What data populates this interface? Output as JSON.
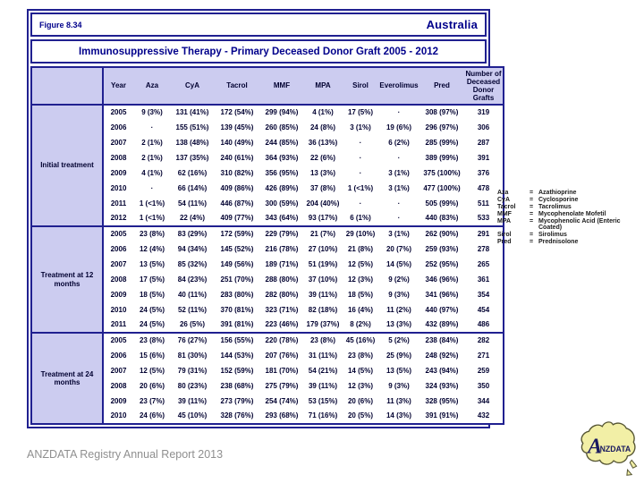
{
  "header": {
    "figure_label": "Figure 8.34",
    "region": "Australia"
  },
  "title": "Immunosuppressive Therapy - Primary Deceased Donor Graft 2005 - 2012",
  "table": {
    "columns": [
      "Year",
      "Aza",
      "CyA",
      "Tacrol",
      "MMF",
      "MPA",
      "Sirol",
      "Everolimus",
      "Pred",
      "Number of Deceased Donor Grafts"
    ],
    "sections": [
      {
        "label": "Initial treatment",
        "rows": [
          [
            "2005",
            "9 (3%)",
            "131 (41%)",
            "172 (54%)",
            "299 (94%)",
            "4 (1%)",
            "17 (5%)",
            "·",
            "308 (97%)",
            "319"
          ],
          [
            "2006",
            "·",
            "155 (51%)",
            "139 (45%)",
            "260 (85%)",
            "24 (8%)",
            "3 (1%)",
            "19 (6%)",
            "296 (97%)",
            "306"
          ],
          [
            "2007",
            "2 (1%)",
            "138 (48%)",
            "140 (49%)",
            "244 (85%)",
            "36 (13%)",
            "·",
            "6 (2%)",
            "285 (99%)",
            "287"
          ],
          [
            "2008",
            "2 (1%)",
            "137 (35%)",
            "240 (61%)",
            "364 (93%)",
            "22 (6%)",
            "·",
            "·",
            "389 (99%)",
            "391"
          ],
          [
            "2009",
            "4 (1%)",
            "62 (16%)",
            "310 (82%)",
            "356 (95%)",
            "13 (3%)",
            "·",
            "3 (1%)",
            "375 (100%)",
            "376"
          ],
          [
            "2010",
            "·",
            "66 (14%)",
            "409 (86%)",
            "426 (89%)",
            "37 (8%)",
            "1 (<1%)",
            "3 (1%)",
            "477 (100%)",
            "478"
          ],
          [
            "2011",
            "1 (<1%)",
            "54 (11%)",
            "446 (87%)",
            "300 (59%)",
            "204 (40%)",
            "·",
            "·",
            "505 (99%)",
            "511"
          ],
          [
            "2012",
            "1 (<1%)",
            "22 (4%)",
            "409 (77%)",
            "343 (64%)",
            "93 (17%)",
            "6 (1%)",
            "·",
            "440 (83%)",
            "533"
          ]
        ]
      },
      {
        "label": "Treatment at 12 months",
        "rows": [
          [
            "2005",
            "23 (8%)",
            "83 (29%)",
            "172 (59%)",
            "229 (79%)",
            "21 (7%)",
            "29 (10%)",
            "3 (1%)",
            "262 (90%)",
            "291"
          ],
          [
            "2006",
            "12 (4%)",
            "94 (34%)",
            "145 (52%)",
            "216 (78%)",
            "27 (10%)",
            "21 (8%)",
            "20 (7%)",
            "259 (93%)",
            "278"
          ],
          [
            "2007",
            "13 (5%)",
            "85 (32%)",
            "149 (56%)",
            "189 (71%)",
            "51 (19%)",
            "12 (5%)",
            "14 (5%)",
            "252 (95%)",
            "265"
          ],
          [
            "2008",
            "17 (5%)",
            "84 (23%)",
            "251 (70%)",
            "288 (80%)",
            "37 (10%)",
            "12 (3%)",
            "9 (2%)",
            "346 (96%)",
            "361"
          ],
          [
            "2009",
            "18 (5%)",
            "40 (11%)",
            "283 (80%)",
            "282 (80%)",
            "39 (11%)",
            "18 (5%)",
            "9 (3%)",
            "341 (96%)",
            "354"
          ],
          [
            "2010",
            "24 (5%)",
            "52 (11%)",
            "370 (81%)",
            "323 (71%)",
            "82 (18%)",
            "16 (4%)",
            "11 (2%)",
            "440 (97%)",
            "454"
          ],
          [
            "2011",
            "24 (5%)",
            "26 (5%)",
            "391 (81%)",
            "223 (46%)",
            "179 (37%)",
            "8 (2%)",
            "13 (3%)",
            "432 (89%)",
            "486"
          ]
        ]
      },
      {
        "label": "Treatment at 24 months",
        "rows": [
          [
            "2005",
            "23 (8%)",
            "76 (27%)",
            "156 (55%)",
            "220 (78%)",
            "23 (8%)",
            "45 (16%)",
            "5 (2%)",
            "238 (84%)",
            "282"
          ],
          [
            "2006",
            "15 (6%)",
            "81 (30%)",
            "144 (53%)",
            "207 (76%)",
            "31 (11%)",
            "23 (8%)",
            "25 (9%)",
            "248 (92%)",
            "271"
          ],
          [
            "2007",
            "12 (5%)",
            "79 (31%)",
            "152 (59%)",
            "181 (70%)",
            "54 (21%)",
            "14 (5%)",
            "13 (5%)",
            "243 (94%)",
            "259"
          ],
          [
            "2008",
            "20 (6%)",
            "80 (23%)",
            "238 (68%)",
            "275 (79%)",
            "39 (11%)",
            "12 (3%)",
            "9 (3%)",
            "324 (93%)",
            "350"
          ],
          [
            "2009",
            "23 (7%)",
            "39 (11%)",
            "273 (79%)",
            "254 (74%)",
            "53 (15%)",
            "20 (6%)",
            "11 (3%)",
            "328 (95%)",
            "344"
          ],
          [
            "2010",
            "24 (6%)",
            "45 (10%)",
            "328 (76%)",
            "293 (68%)",
            "71 (16%)",
            "20 (5%)",
            "14 (3%)",
            "391 (91%)",
            "432"
          ]
        ]
      }
    ]
  },
  "legend": {
    "items": [
      {
        "abbr": "Aza",
        "full": "Azathioprine"
      },
      {
        "abbr": "CyA",
        "full": "Cyclosporine"
      },
      {
        "abbr": "Tacrol",
        "full": "Tacrolimus"
      },
      {
        "abbr": "MMF",
        "full": "Mycophenolate Mofetil"
      },
      {
        "abbr": "MPA",
        "full": "Mycophenolic Acid (Enteric Coated)"
      },
      {
        "abbr": "Sirol",
        "full": "Sirolimus"
      },
      {
        "abbr": "Pred",
        "full": "Prednisolone"
      }
    ]
  },
  "footer": "ANZDATA Registry Annual Report 2013",
  "logo": {
    "text_main": "A",
    "text_rest": "NZDATA"
  },
  "colors": {
    "navy": "#00008b",
    "border_navy": "#202090",
    "lavender": "#ccccf0",
    "logo_yellow": "#f2efa6",
    "footer_gray": "#8f8f8f"
  }
}
